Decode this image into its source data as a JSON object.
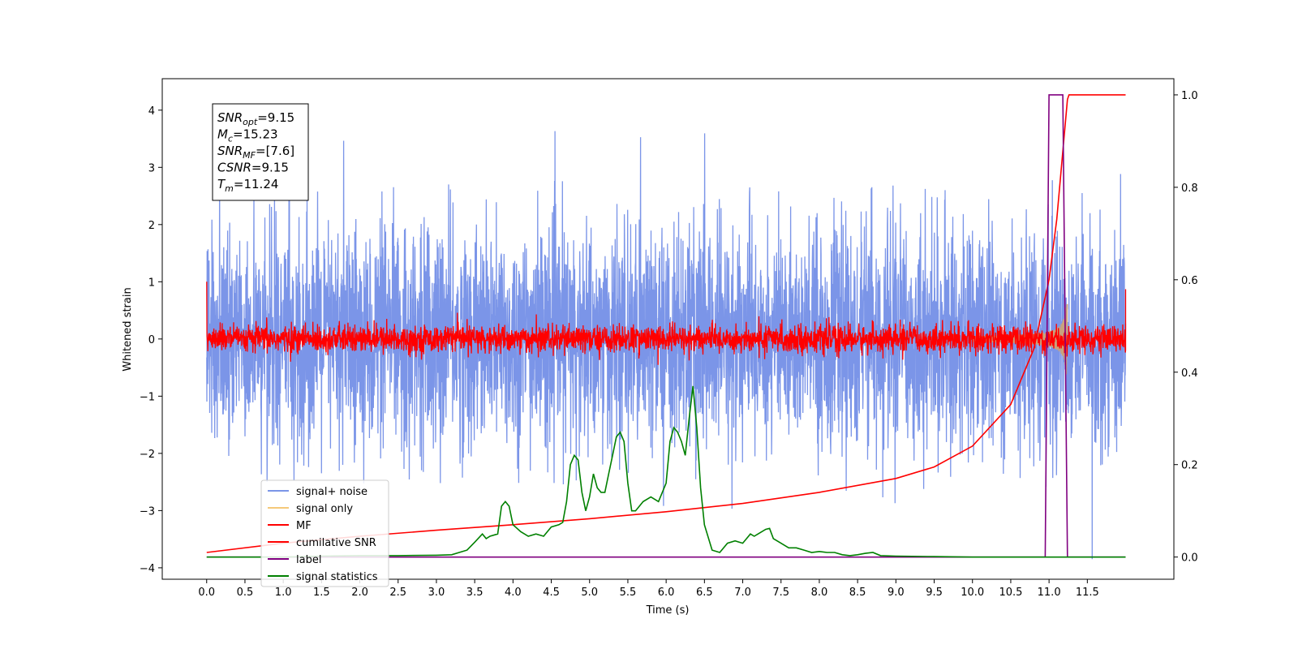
{
  "chart_data": {
    "type": "line",
    "title": "",
    "xlabel": "Time (s)",
    "ylabel_left": "Whitened strain",
    "ylabel_right": "",
    "xlim": [
      -0.58,
      12.63
    ],
    "ylim_left": [
      -4.2,
      4.55
    ],
    "ylim_right": [
      -0.048,
      1.035
    ],
    "x_ticks": [
      "0.0",
      "0.5",
      "1.0",
      "1.5",
      "2.0",
      "2.5",
      "3.0",
      "3.5",
      "4.0",
      "4.5",
      "5.0",
      "5.5",
      "6.0",
      "6.5",
      "7.0",
      "7.5",
      "8.0",
      "8.5",
      "9.0",
      "9.5",
      "10.0",
      "10.5",
      "11.0",
      "11.5"
    ],
    "y_left_ticks": [
      "4",
      "3",
      "2",
      "1",
      "0",
      "−1",
      "−2",
      "−3",
      "−4"
    ],
    "y_right_ticks": [
      "1.0",
      "0.8",
      "0.6",
      "0.4",
      "0.2",
      "0.0"
    ],
    "grid": false,
    "legend_position": "lower-left",
    "colors": {
      "signal_noise": "#7b95e8",
      "signal_only": "#f5c97a",
      "signal_fill": "#c9a27c",
      "mf": "#ff0000",
      "cumulative": "#e02020",
      "label": "#800080",
      "statistics": "#008000"
    },
    "series": [
      {
        "name": "signal+ noise",
        "axis": "left",
        "color": "#7b95e8",
        "noise_sigma": 0.95,
        "range_x": [
          0.0,
          12.0
        ]
      },
      {
        "name": "signal only",
        "axis": "left",
        "color": "#f5c97a",
        "amplitude_start": 0.05,
        "amplitude_peak": 0.75,
        "peak_x": 11.24
      },
      {
        "name": "MF",
        "axis": "left",
        "color": "#ff0000",
        "noise_sigma": 0.12,
        "start_value": 1.0,
        "end_value": 0.87
      },
      {
        "name": "cumilative SNR",
        "axis": "right",
        "color": "#ff0000",
        "x": [
          0.0,
          1.0,
          2.0,
          3.0,
          4.0,
          5.0,
          6.0,
          7.0,
          8.0,
          9.0,
          9.5,
          10.0,
          10.5,
          10.8,
          11.0,
          11.1,
          11.24
        ],
        "y": [
          0.01,
          0.03,
          0.045,
          0.058,
          0.07,
          0.083,
          0.098,
          0.116,
          0.14,
          0.17,
          0.195,
          0.24,
          0.33,
          0.45,
          0.6,
          0.73,
          0.99
        ]
      },
      {
        "name": "label",
        "axis": "right",
        "color": "#800080",
        "x": [
          0.0,
          10.95,
          11.0,
          11.18,
          11.24,
          12.0
        ],
        "y": [
          0.0,
          0.0,
          1.0,
          1.0,
          0.0,
          0.0
        ]
      },
      {
        "name": "signal statistics",
        "axis": "right",
        "color": "#008000",
        "x": [
          0.0,
          0.5,
          1.0,
          1.5,
          2.0,
          2.5,
          3.0,
          3.2,
          3.4,
          3.5,
          3.6,
          3.65,
          3.7,
          3.8,
          3.85,
          3.9,
          3.95,
          4.0,
          4.1,
          4.2,
          4.3,
          4.4,
          4.5,
          4.6,
          4.65,
          4.7,
          4.75,
          4.8,
          4.85,
          4.9,
          4.95,
          5.0,
          5.05,
          5.1,
          5.15,
          5.2,
          5.25,
          5.3,
          5.35,
          5.4,
          5.45,
          5.5,
          5.55,
          5.6,
          5.7,
          5.8,
          5.9,
          6.0,
          6.05,
          6.1,
          6.15,
          6.2,
          6.25,
          6.3,
          6.35,
          6.4,
          6.45,
          6.5,
          6.6,
          6.7,
          6.8,
          6.9,
          7.0,
          7.05,
          7.1,
          7.15,
          7.2,
          7.3,
          7.35,
          7.4,
          7.5,
          7.6,
          7.7,
          7.8,
          7.9,
          8.0,
          8.1,
          8.2,
          8.3,
          8.4,
          8.5,
          8.6,
          8.7,
          8.8,
          9.0,
          9.5,
          10.0,
          11.0,
          12.0
        ],
        "y": [
          0.0,
          0.0,
          0.0,
          0.002,
          0.003,
          0.003,
          0.004,
          0.005,
          0.015,
          0.032,
          0.05,
          0.04,
          0.045,
          0.05,
          0.11,
          0.12,
          0.11,
          0.07,
          0.055,
          0.045,
          0.05,
          0.045,
          0.065,
          0.07,
          0.075,
          0.12,
          0.2,
          0.22,
          0.21,
          0.14,
          0.1,
          0.13,
          0.18,
          0.15,
          0.14,
          0.14,
          0.18,
          0.22,
          0.26,
          0.27,
          0.25,
          0.16,
          0.1,
          0.1,
          0.12,
          0.13,
          0.12,
          0.16,
          0.25,
          0.28,
          0.27,
          0.25,
          0.22,
          0.3,
          0.37,
          0.28,
          0.15,
          0.07,
          0.015,
          0.01,
          0.03,
          0.035,
          0.03,
          0.04,
          0.05,
          0.045,
          0.05,
          0.06,
          0.062,
          0.04,
          0.03,
          0.02,
          0.02,
          0.015,
          0.01,
          0.012,
          0.01,
          0.01,
          0.005,
          0.003,
          0.005,
          0.008,
          0.01,
          0.003,
          0.002,
          0.001,
          0.0,
          0.0,
          0.0
        ]
      }
    ],
    "annotations": [
      {
        "name": "SNR",
        "sub": "opt",
        "value": "=9.15"
      },
      {
        "name": "M",
        "sub": "c",
        "value": "=15.23"
      },
      {
        "name": "SNR",
        "sub": "MF",
        "value": "=[7.6]"
      },
      {
        "name": "CSNR",
        "sub": "",
        "value": "=9.15"
      },
      {
        "name": "T",
        "sub": "m",
        "value": "=11.24"
      }
    ]
  }
}
